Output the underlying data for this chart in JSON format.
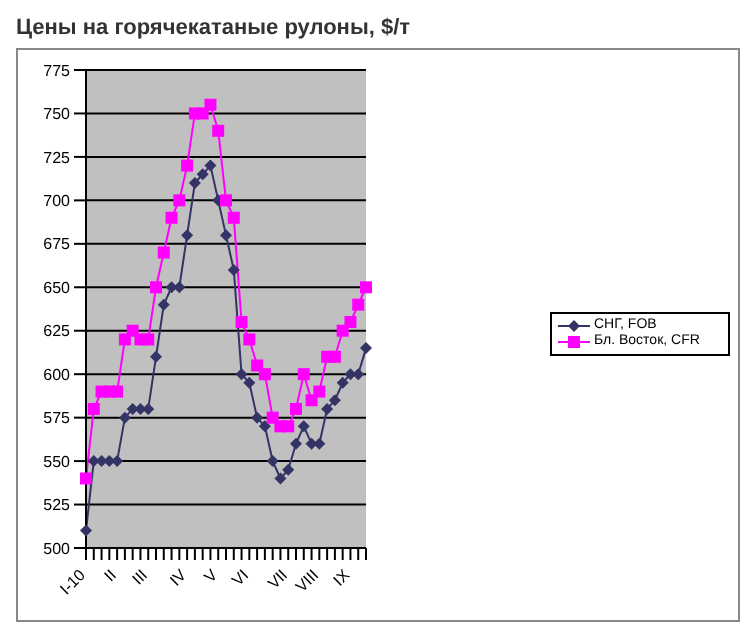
{
  "chart_data": {
    "type": "line",
    "title": "Цены на горячекатаные рулоны, $/т",
    "categories": [
      "I-10",
      null,
      null,
      null,
      "II",
      null,
      null,
      null,
      "III",
      null,
      null,
      null,
      null,
      "IV",
      null,
      null,
      null,
      "V",
      null,
      null,
      null,
      "VI",
      null,
      null,
      null,
      null,
      "VII",
      null,
      null,
      null,
      "VIII",
      null,
      null,
      null,
      "IX",
      null,
      null
    ],
    "series": [
      {
        "name": "СНГ, FOB",
        "color": "#333366",
        "marker": "diamond",
        "values": [
          510,
          550,
          550,
          550,
          550,
          575,
          580,
          580,
          580,
          610,
          640,
          650,
          650,
          680,
          710,
          715,
          720,
          700,
          680,
          660,
          600,
          595,
          575,
          570,
          550,
          540,
          545,
          560,
          570,
          560,
          560,
          580,
          585,
          595,
          600,
          600,
          615
        ]
      },
      {
        "name": "Бл. Восток, CFR",
        "color": "#ff00ff",
        "marker": "square",
        "values": [
          540,
          580,
          590,
          590,
          590,
          620,
          625,
          620,
          620,
          650,
          670,
          690,
          700,
          720,
          750,
          750,
          755,
          740,
          700,
          690,
          630,
          620,
          605,
          600,
          575,
          570,
          570,
          580,
          600,
          585,
          590,
          610,
          610,
          625,
          630,
          640,
          650
        ]
      }
    ],
    "ylim": [
      500,
      775
    ],
    "yticks": [
      500,
      525,
      550,
      575,
      600,
      625,
      650,
      675,
      700,
      725,
      750,
      775
    ],
    "grid": "y",
    "legend": "right"
  }
}
